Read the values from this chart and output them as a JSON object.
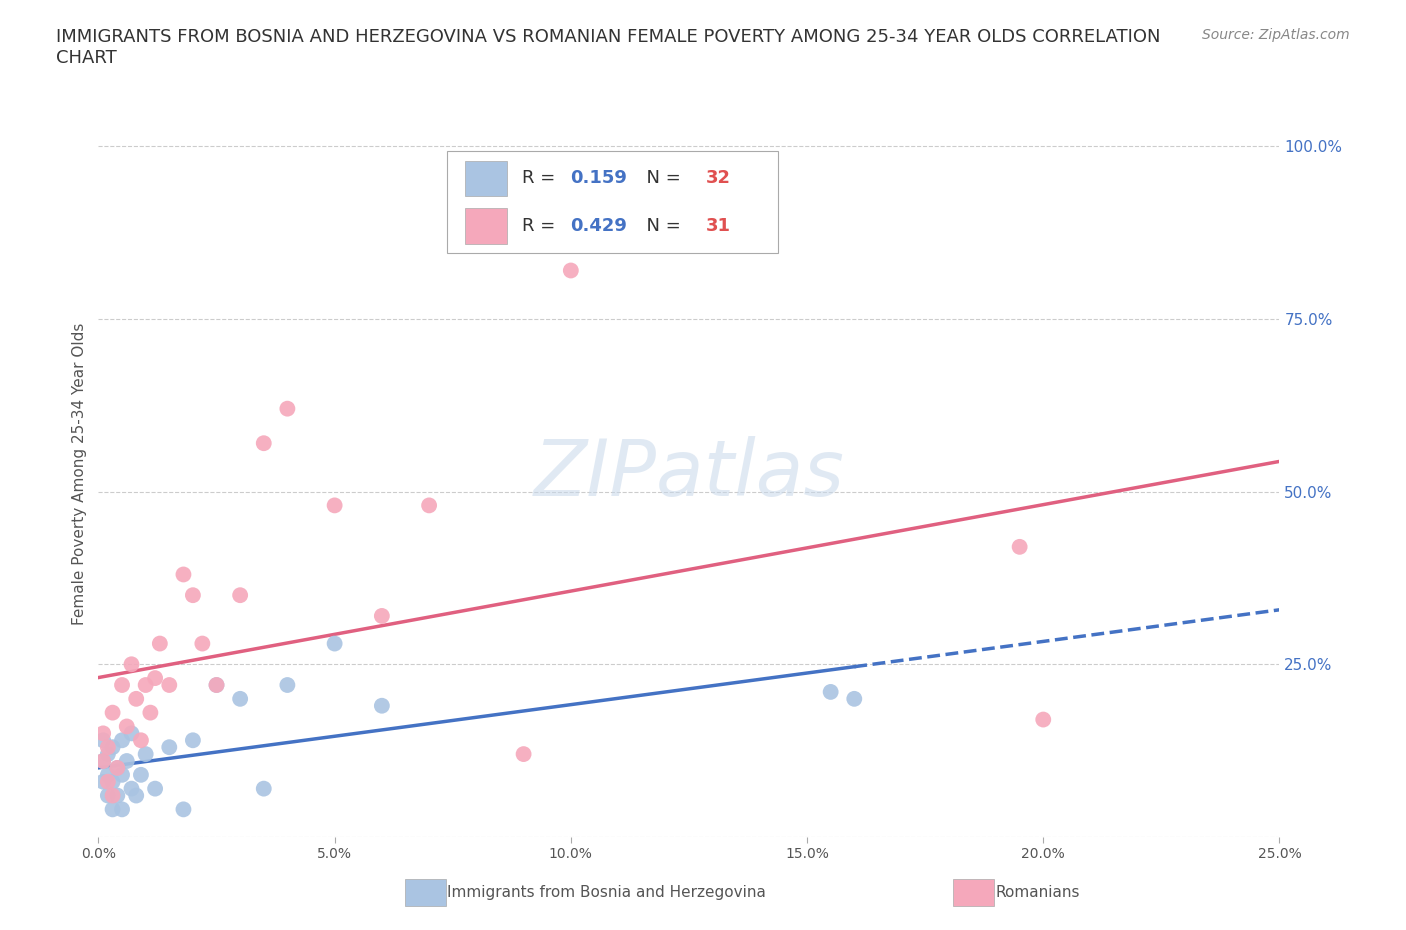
{
  "title": "IMMIGRANTS FROM BOSNIA AND HERZEGOVINA VS ROMANIAN FEMALE POVERTY AMONG 25-34 YEAR OLDS CORRELATION\nCHART",
  "source": "Source: ZipAtlas.com",
  "ylabel": "Female Poverty Among 25-34 Year Olds",
  "xlim": [
    0.0,
    0.25
  ],
  "ylim": [
    0.0,
    1.05
  ],
  "bosnia_color": "#aac4e2",
  "romanian_color": "#f5a8bb",
  "bosnia_line_color": "#4472c4",
  "romanian_line_color": "#e06080",
  "bosnia_R": 0.159,
  "bosnia_N": 32,
  "romanian_R": 0.429,
  "romanian_N": 31,
  "watermark": "ZIPatlas",
  "bosnia_x": [
    0.001,
    0.001,
    0.001,
    0.002,
    0.002,
    0.002,
    0.003,
    0.003,
    0.003,
    0.004,
    0.004,
    0.005,
    0.005,
    0.005,
    0.006,
    0.007,
    0.007,
    0.008,
    0.009,
    0.01,
    0.012,
    0.015,
    0.018,
    0.02,
    0.025,
    0.03,
    0.035,
    0.04,
    0.05,
    0.06,
    0.155,
    0.16
  ],
  "bosnia_y": [
    0.14,
    0.11,
    0.08,
    0.12,
    0.09,
    0.06,
    0.13,
    0.08,
    0.04,
    0.1,
    0.06,
    0.14,
    0.09,
    0.04,
    0.11,
    0.15,
    0.07,
    0.06,
    0.09,
    0.12,
    0.07,
    0.13,
    0.04,
    0.14,
    0.22,
    0.2,
    0.07,
    0.22,
    0.28,
    0.19,
    0.21,
    0.2
  ],
  "romanian_x": [
    0.001,
    0.001,
    0.002,
    0.002,
    0.003,
    0.003,
    0.004,
    0.005,
    0.006,
    0.007,
    0.008,
    0.009,
    0.01,
    0.011,
    0.012,
    0.013,
    0.015,
    0.018,
    0.02,
    0.022,
    0.025,
    0.03,
    0.035,
    0.04,
    0.05,
    0.06,
    0.07,
    0.09,
    0.1,
    0.195,
    0.2
  ],
  "romanian_y": [
    0.15,
    0.11,
    0.13,
    0.08,
    0.18,
    0.06,
    0.1,
    0.22,
    0.16,
    0.25,
    0.2,
    0.14,
    0.22,
    0.18,
    0.23,
    0.28,
    0.22,
    0.38,
    0.35,
    0.28,
    0.22,
    0.35,
    0.57,
    0.62,
    0.48,
    0.32,
    0.48,
    0.12,
    0.82,
    0.42,
    0.17
  ],
  "background_color": "#ffffff",
  "grid_color": "#cccccc",
  "legend_R_color": "#4472c4",
  "legend_N_color": "#e05050"
}
